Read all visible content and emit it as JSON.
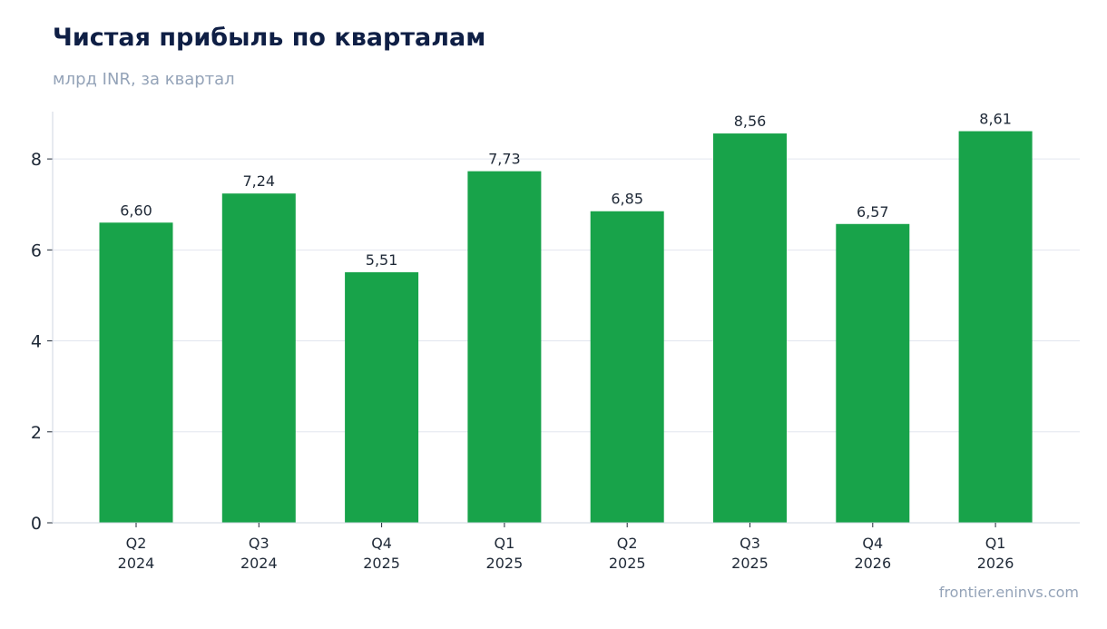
{
  "header": {
    "title": "Чистая прибыль по кварталам",
    "subtitle": "млрд INR, за квартал"
  },
  "footer": {
    "source": "frontier.eninvs.com"
  },
  "colors": {
    "bar": "#18a34a",
    "grid": "#e2e6ef",
    "axis": "#cfd5e0",
    "text": "#1f2937"
  },
  "chart_data": {
    "type": "bar",
    "title": "Чистая прибыль по кварталам",
    "subtitle": "млрд INR, за квартал",
    "categories": [
      [
        "Q2",
        "2024"
      ],
      [
        "Q3",
        "2024"
      ],
      [
        "Q4",
        "2025"
      ],
      [
        "Q1",
        "2025"
      ],
      [
        "Q2",
        "2025"
      ],
      [
        "Q3",
        "2025"
      ],
      [
        "Q4",
        "2026"
      ],
      [
        "Q1",
        "2026"
      ]
    ],
    "values": [
      6.6,
      7.24,
      5.51,
      7.73,
      6.85,
      8.56,
      6.57,
      8.61
    ],
    "value_labels": [
      "6,60",
      "7,24",
      "5,51",
      "7,73",
      "6,85",
      "8,56",
      "6,57",
      "8,61"
    ],
    "yticks": [
      0,
      2,
      4,
      6,
      8
    ],
    "ylim": [
      0,
      9.04
    ],
    "grid": true,
    "legend": false
  }
}
